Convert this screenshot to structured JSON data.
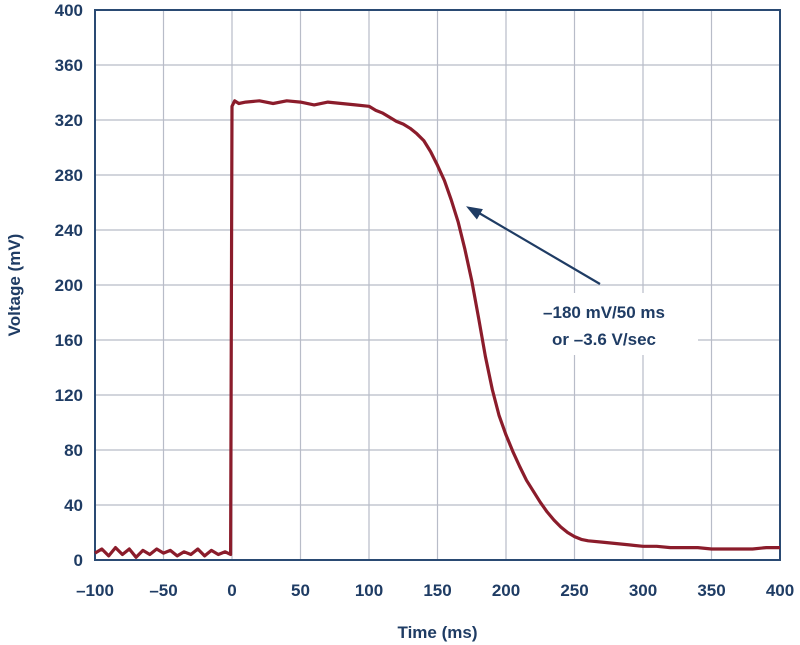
{
  "colors": {
    "axis_text": "#1f3c64",
    "grid": "#b8bcc8",
    "frame": "#2a4a73",
    "series": "#8b1c2b",
    "annotation_text": "#1f3c64",
    "arrow": "#1f3c64"
  },
  "chart_data": {
    "type": "line",
    "title": "",
    "xlabel": "Time (ms)",
    "ylabel": "Voltage (mV)",
    "xlim": [
      -100,
      400
    ],
    "ylim": [
      0,
      400
    ],
    "x_ticks": [
      -100,
      -50,
      0,
      50,
      100,
      150,
      200,
      250,
      300,
      350,
      400
    ],
    "x_tick_labels": [
      "–100",
      "–50",
      "0",
      "50",
      "100",
      "150",
      "200",
      "250",
      "300",
      "350",
      "400"
    ],
    "y_ticks": [
      0,
      40,
      80,
      120,
      160,
      200,
      240,
      280,
      320,
      360,
      400
    ],
    "y_tick_labels": [
      "0",
      "40",
      "80",
      "120",
      "160",
      "200",
      "240",
      "280",
      "320",
      "360",
      "400"
    ],
    "grid": true,
    "series": [
      {
        "x": [
          -100,
          -95,
          -90,
          -85,
          -80,
          -75,
          -70,
          -65,
          -60,
          -55,
          -50,
          -45,
          -40,
          -35,
          -30,
          -25,
          -20,
          -15,
          -10,
          -5,
          -1,
          0,
          2,
          5,
          10,
          20,
          30,
          40,
          50,
          60,
          70,
          80,
          90,
          100,
          105,
          110,
          115,
          120,
          125,
          130,
          135,
          140,
          145,
          150,
          155,
          160,
          165,
          170,
          175,
          180,
          185,
          190,
          195,
          200,
          205,
          210,
          215,
          220,
          225,
          230,
          235,
          240,
          245,
          250,
          255,
          260,
          270,
          280,
          290,
          300,
          310,
          320,
          330,
          340,
          350,
          360,
          370,
          380,
          390,
          400
        ],
        "y": [
          5,
          8,
          3,
          9,
          4,
          8,
          2,
          7,
          4,
          8,
          5,
          7,
          3,
          6,
          4,
          8,
          3,
          7,
          4,
          6,
          4,
          330,
          334,
          332,
          333,
          334,
          332,
          334,
          333,
          331,
          333,
          332,
          331,
          330,
          327,
          325,
          322,
          319,
          317,
          314,
          310,
          305,
          297,
          287,
          276,
          262,
          246,
          226,
          203,
          176,
          148,
          124,
          105,
          91,
          79,
          68,
          58,
          50,
          42,
          35,
          29,
          24,
          20,
          17,
          15,
          14,
          13,
          12,
          11,
          10,
          10,
          9,
          9,
          9,
          8,
          8,
          8,
          8,
          9,
          9
        ]
      }
    ],
    "annotation": {
      "line1": "–180 mV/50 ms",
      "line2": "or –3.6 V/sec",
      "arrow_target": [
        165,
        258
      ]
    }
  }
}
